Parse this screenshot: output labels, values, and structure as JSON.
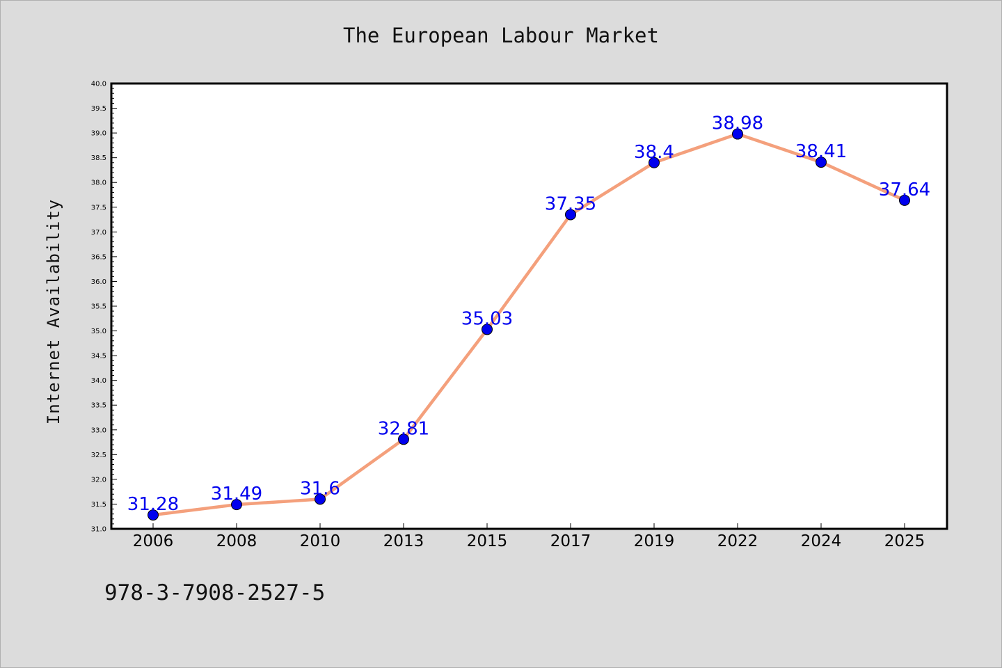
{
  "chart_data": {
    "type": "line",
    "title": "The European Labour Market",
    "xlabel": "",
    "ylabel": "Internet Availability",
    "categories": [
      "2006",
      "2008",
      "2010",
      "2013",
      "2015",
      "2017",
      "2019",
      "2022",
      "2024",
      "2025"
    ],
    "series": [
      {
        "values": [
          31.28,
          31.49,
          31.6,
          32.81,
          35.03,
          37.35,
          38.4,
          38.98,
          38.41,
          37.64
        ],
        "labels": [
          "31.28",
          "31.49",
          "31.6",
          "32.81",
          "35.03",
          "37.35",
          "38.4",
          "38.98",
          "38.41",
          "37.64"
        ]
      }
    ],
    "ylim": [
      31.0,
      40.0
    ],
    "yticks": [
      "31.0",
      "31.5",
      "32.0",
      "32.5",
      "33.0",
      "33.5",
      "34.0",
      "34.5",
      "35.0",
      "35.5",
      "36.0",
      "36.5",
      "37.0",
      "37.5",
      "38.0",
      "38.5",
      "39.0",
      "39.5",
      "40.0"
    ],
    "grid": false,
    "legend": "none",
    "colors": {
      "line": "#f4a07c",
      "marker": "#0000ee",
      "label": "#0000ee",
      "background": "#dcdcdc",
      "plot_background": "#ffffff"
    }
  },
  "footer_text": "978-3-7908-2527-5"
}
